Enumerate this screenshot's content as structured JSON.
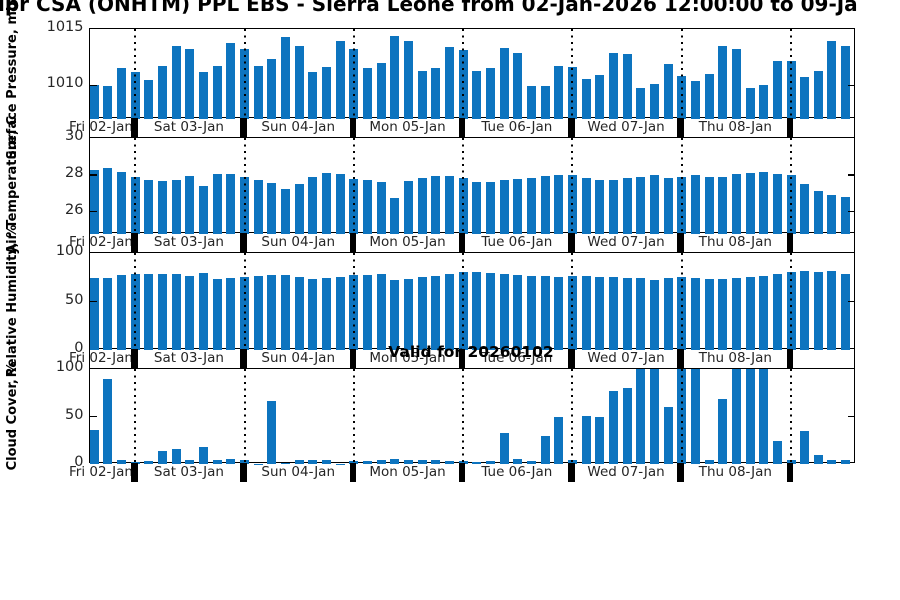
{
  "title": "ipr CSA (ONHTM) PPL EBS  - Sierra Leone from 02-Jan-2026 12:00:00 to 09-Ja",
  "annotation": "Valid for 20260102",
  "colors": {
    "bar": "#0D74BF",
    "axis": "#000000",
    "tick_label": "#262626"
  },
  "x_axis": {
    "day_labels": [
      "Fri 02-Jan",
      "Sat 03-Jan",
      "Sun 04-Jan",
      "Mon 05-Jan",
      "Tue 06-Jan",
      "Wed 07-Jan",
      "Thu 08-Jan"
    ],
    "boundary_indices": [
      3,
      11,
      19,
      27,
      35,
      43,
      51
    ],
    "points_per_day": 8,
    "interval_hours": 3,
    "n_points": 56
  },
  "chart_data": [
    {
      "type": "bar",
      "ylabel": "Surface Pressure, mbar",
      "yticks": [
        1010,
        1015
      ],
      "ylim": [
        1007,
        1015
      ],
      "values": [
        1010.0,
        1009.9,
        1011.5,
        1011.2,
        1010.5,
        1011.7,
        1013.5,
        1013.2,
        1011.2,
        1011.7,
        1013.8,
        1013.2,
        1011.7,
        1012.3,
        1014.3,
        1013.5,
        1011.2,
        1011.6,
        1013.9,
        1013.2,
        1011.5,
        1012.0,
        1014.4,
        1013.9,
        1011.3,
        1011.5,
        1013.4,
        1013.1,
        1011.3,
        1011.5,
        1013.3,
        1012.9,
        1009.9,
        1009.9,
        1011.7,
        1011.6,
        1010.6,
        1010.9,
        1012.9,
        1012.8,
        1009.8,
        1010.1,
        1011.9,
        1010.8,
        1010.4,
        1011.0,
        1013.5,
        1013.2,
        1009.8,
        1010.0,
        1012.2,
        1012.2,
        1010.7,
        1011.3,
        1013.9,
        1013.5
      ]
    },
    {
      "type": "bar",
      "ylabel": "Air Temperature, C",
      "yticks": [
        26,
        28,
        30
      ],
      "ylim": [
        24.8,
        30
      ],
      "values": [
        28.25,
        28.4,
        28.15,
        27.9,
        27.75,
        27.65,
        27.75,
        27.95,
        27.4,
        28.05,
        28.05,
        27.9,
        27.7,
        27.55,
        27.25,
        27.5,
        27.9,
        28.1,
        28.05,
        27.8,
        27.7,
        27.6,
        26.75,
        27.65,
        27.85,
        27.95,
        27.95,
        27.85,
        27.6,
        27.6,
        27.75,
        27.8,
        27.85,
        27.95,
        28.0,
        28.0,
        27.85,
        27.7,
        27.7,
        27.85,
        27.9,
        28.0,
        27.85,
        27.9,
        28.0,
        27.9,
        27.9,
        28.05,
        28.1,
        28.15,
        28.05,
        28.0,
        27.5,
        27.15,
        26.9,
        26.8
      ]
    },
    {
      "type": "bar",
      "ylabel": "Relative Humidity, %",
      "yticks": [
        0,
        50,
        100
      ],
      "ylim": [
        0,
        100
      ],
      "values": [
        74,
        74,
        77,
        78,
        78,
        78,
        78,
        76,
        79,
        73,
        74,
        75,
        76,
        77,
        77,
        75,
        73,
        74,
        75,
        77,
        77,
        78,
        72,
        73,
        75,
        76,
        78,
        80,
        80,
        79,
        78,
        77,
        76,
        76,
        75,
        76,
        76,
        75,
        75,
        74,
        74,
        72,
        74,
        75,
        74,
        73,
        73,
        74,
        75,
        76,
        78,
        80,
        81,
        80,
        81,
        78
      ]
    },
    {
      "type": "bar",
      "ylabel": "Cloud Cover, %",
      "yticks": [
        0,
        50,
        100
      ],
      "ylim": [
        0,
        100
      ],
      "values": [
        36,
        89,
        4,
        2,
        3,
        14,
        16,
        4,
        18,
        4,
        5,
        4,
        0.5,
        66,
        1,
        4,
        4,
        4,
        0.5,
        3,
        3,
        4,
        5,
        4,
        4,
        4,
        3,
        3,
        2,
        3,
        33,
        5,
        3,
        29,
        49,
        4,
        51,
        50,
        77,
        80,
        100,
        100,
        60,
        100,
        100,
        4,
        68,
        100,
        100,
        100,
        24,
        4,
        35,
        10,
        4,
        4
      ]
    }
  ]
}
